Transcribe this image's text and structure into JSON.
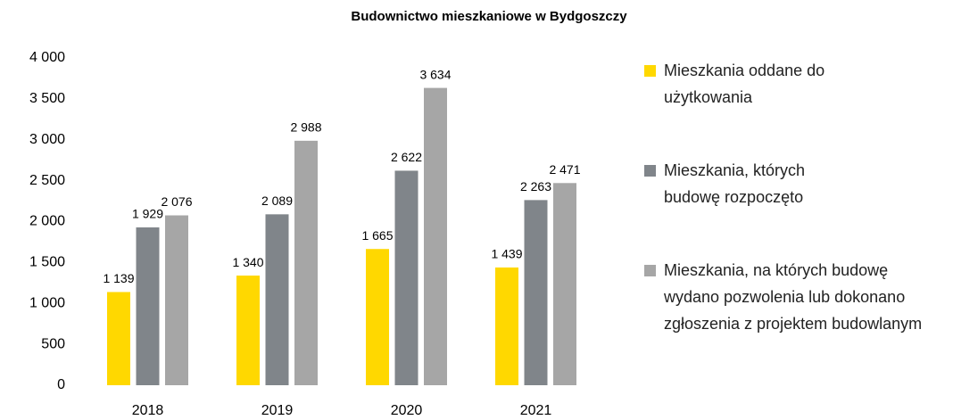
{
  "chart_data": {
    "type": "bar",
    "title": "Budownictwo mieszkaniowe w Bydgoszczy",
    "categories": [
      "2018",
      "2019",
      "2020",
      "2021"
    ],
    "series": [
      {
        "name": "Mieszkania oddane do użytkowania",
        "color": "#ffd800",
        "values": [
          1139,
          1340,
          1665,
          1439
        ],
        "value_labels": [
          "1 139",
          "1 340",
          "1 665",
          "1 439"
        ]
      },
      {
        "name": "Mieszkania, których budowę rozpoczęto",
        "color": "#80858a",
        "values": [
          1929,
          2089,
          2622,
          2263
        ],
        "value_labels": [
          "1 929",
          "2 089",
          "2 622",
          "2 263"
        ]
      },
      {
        "name": "Mieszkania, na których budowę wydano pozwolenia lub dokonano zgłoszenia z projektem budowlanym",
        "color": "#a6a6a6",
        "values": [
          2076,
          2988,
          3634,
          2471
        ],
        "value_labels": [
          "2 076",
          "2 988",
          "3 634",
          "2 471"
        ]
      }
    ],
    "ylim": [
      0,
      4000
    ],
    "yticks": [
      0,
      500,
      {
        "value": 1000,
        "label": "1 000"
      },
      {
        "value": 1500,
        "label": "1 500"
      },
      {
        "value": 2000,
        "label": "2 000"
      },
      {
        "value": 2500,
        "label": "2 500"
      },
      {
        "value": 3000,
        "label": "3 000"
      },
      {
        "value": 3500,
        "label": "3 500"
      },
      {
        "value": 4000,
        "label": "4 000"
      }
    ],
    "grid": false,
    "legend": "right"
  }
}
